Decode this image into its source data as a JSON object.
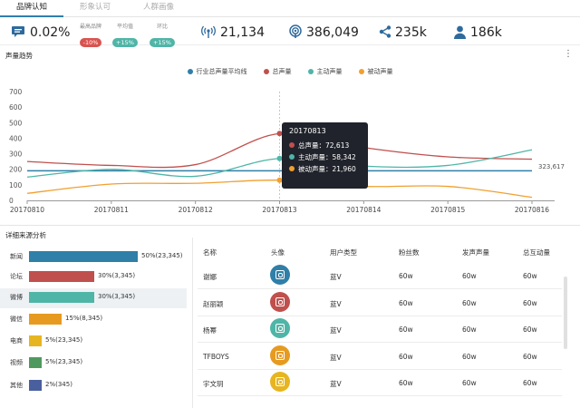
{
  "tabs": [
    {
      "label": "品牌认知",
      "active": true
    },
    {
      "label": "形象认可",
      "active": false
    },
    {
      "label": "人群画像",
      "active": false
    }
  ],
  "kpis": {
    "share": {
      "icon": "chat-bubble-icon",
      "value": "0.02%"
    },
    "max_brand": {
      "label": "最高品牌",
      "badge": "-10%",
      "color": "#d9534f"
    },
    "average": {
      "label": "平均值",
      "badge": "+15%",
      "color": "#4fb5a7"
    },
    "ratio": {
      "label": "环比",
      "badge": "+15%",
      "color": "#4fb5a7"
    },
    "broadcast": {
      "icon": "signal-icon",
      "value": "21,134"
    },
    "reach": {
      "icon": "podcast-icon",
      "value": "386,049"
    },
    "shares": {
      "icon": "share-icon",
      "value": "235k"
    },
    "users": {
      "icon": "user-icon",
      "value": "186k"
    }
  },
  "trend": {
    "title": "声量趋势",
    "end_label": "323,617",
    "tooltip": {
      "title": "20170813",
      "rows": [
        {
          "label": "总声量：72,613",
          "color": "#c0504d"
        },
        {
          "label": "主动声量：58,342",
          "color": "#4fb5a7"
        },
        {
          "label": "被动声量：21,960",
          "color": "#f0a030"
        }
      ]
    }
  },
  "chart_data": {
    "type": "line",
    "x": [
      "20170810",
      "20170811",
      "20170812",
      "20170813",
      "20170814",
      "20170815",
      "20170816"
    ],
    "ylim": [
      0,
      700
    ],
    "yticks": [
      0,
      100,
      200,
      300,
      400,
      500,
      600,
      700
    ],
    "legend_position": "top-center",
    "grid": false,
    "series": [
      {
        "name": "行业总声量平均线",
        "color": "#2f7fa8",
        "values": [
          190,
          190,
          190,
          190,
          190,
          190,
          190
        ]
      },
      {
        "name": "总声量",
        "color": "#c0504d",
        "values": [
          250,
          225,
          230,
          430,
          340,
          280,
          265
        ]
      },
      {
        "name": "主动声量",
        "color": "#4fb5a7",
        "values": [
          150,
          200,
          155,
          270,
          220,
          225,
          325
        ]
      },
      {
        "name": "被动声量",
        "color": "#f0a030",
        "values": [
          45,
          105,
          110,
          130,
          90,
          90,
          20
        ]
      }
    ]
  },
  "sources": {
    "title": "详细来源分析",
    "items": [
      {
        "name": "新闻",
        "value": "50%(23,345)",
        "percent": 50,
        "color": "#2f7fa8"
      },
      {
        "name": "论坛",
        "value": "30%(3,345)",
        "percent": 30,
        "color": "#c0504d"
      },
      {
        "name": "微博",
        "value": "30%(3,345)",
        "percent": 30,
        "color": "#4fb5a7"
      },
      {
        "name": "微信",
        "value": "15%(8,345)",
        "percent": 15,
        "color": "#e79a20"
      },
      {
        "name": "电商",
        "value": "5%(23,345)",
        "percent": 5,
        "color": "#e7b520"
      },
      {
        "name": "视频",
        "value": "5%(23,345)",
        "percent": 5,
        "color": "#4e9a5e"
      },
      {
        "name": "其他",
        "value": "2%(345)",
        "percent": 2,
        "color": "#4a5f9e"
      }
    ]
  },
  "table": {
    "headers": [
      "名称",
      "头像",
      "用户类型",
      "粉丝数",
      "发声声量",
      "总互动量"
    ],
    "rows": [
      {
        "name": "谢娜",
        "avatar_color": "#2f7fa8",
        "type": "蓝V",
        "fans": "60w",
        "voice": "60w",
        "interact": "60w"
      },
      {
        "name": "赵丽颖",
        "avatar_color": "#c0504d",
        "type": "蓝V",
        "fans": "60w",
        "voice": "60w",
        "interact": "60w"
      },
      {
        "name": "杨幂",
        "avatar_color": "#4fb5a7",
        "type": "蓝V",
        "fans": "60w",
        "voice": "60w",
        "interact": "60w"
      },
      {
        "name": "TFBOYS",
        "avatar_color": "#e79a20",
        "type": "蓝V",
        "fans": "60w",
        "voice": "60w",
        "interact": "60w"
      },
      {
        "name": "宇文玥",
        "avatar_color": "#e7b520",
        "type": "蓝V",
        "fans": "60w",
        "voice": "60w",
        "interact": "60w"
      }
    ]
  }
}
